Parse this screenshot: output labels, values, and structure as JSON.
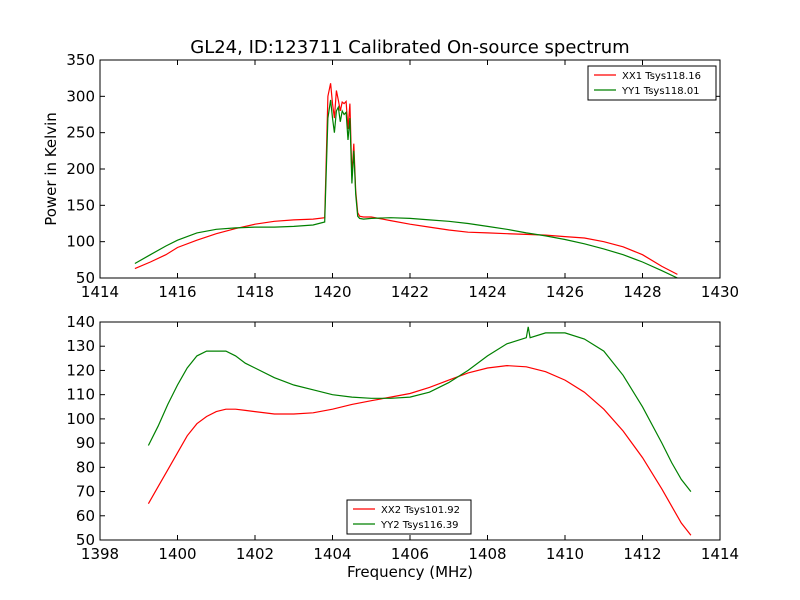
{
  "figure": {
    "title": "GL24, ID:123711 Calibrated On-source spectrum"
  },
  "chart_data": [
    {
      "type": "line",
      "title": "GL24, ID:123711 Calibrated On-source spectrum",
      "xlabel": "",
      "ylabel": "Power in Kelvin",
      "xlim": [
        1414,
        1430
      ],
      "ylim": [
        50,
        350
      ],
      "xticks": [
        1414,
        1416,
        1418,
        1420,
        1422,
        1424,
        1426,
        1428,
        1430
      ],
      "yticks": [
        50,
        100,
        150,
        200,
        250,
        300,
        350
      ],
      "grid": false,
      "legend_position": "top-right",
      "series": [
        {
          "name": "XX1 Tsys118.16",
          "color": "#ff0000",
          "x": [
            1414.9,
            1415.3,
            1415.7,
            1416.0,
            1416.5,
            1417.0,
            1417.5,
            1418.0,
            1418.5,
            1419.0,
            1419.5,
            1419.8,
            1419.88,
            1419.95,
            1420.0,
            1420.05,
            1420.1,
            1420.15,
            1420.2,
            1420.25,
            1420.3,
            1420.35,
            1420.4,
            1420.45,
            1420.5,
            1420.55,
            1420.6,
            1420.65,
            1420.7,
            1420.8,
            1421.0,
            1421.5,
            1422.0,
            1422.5,
            1423.0,
            1423.5,
            1424.0,
            1424.5,
            1425.0,
            1425.5,
            1426.0,
            1426.5,
            1427.0,
            1427.5,
            1428.0,
            1428.5,
            1428.9
          ],
          "y": [
            63,
            72,
            82,
            92,
            102,
            111,
            118,
            124,
            128,
            130,
            131,
            133,
            300,
            318,
            290,
            270,
            308,
            295,
            280,
            292,
            290,
            293,
            255,
            290,
            190,
            235,
            170,
            140,
            135,
            134,
            134,
            129,
            124,
            120,
            116,
            113,
            112,
            111,
            110,
            109,
            107,
            105,
            100,
            93,
            82,
            66,
            55
          ]
        },
        {
          "name": "YY1 Tsys118.01",
          "color": "#008000",
          "x": [
            1414.9,
            1415.3,
            1415.7,
            1416.0,
            1416.5,
            1417.0,
            1417.5,
            1418.0,
            1418.5,
            1419.0,
            1419.5,
            1419.8,
            1419.88,
            1419.95,
            1420.0,
            1420.05,
            1420.1,
            1420.15,
            1420.2,
            1420.25,
            1420.3,
            1420.35,
            1420.4,
            1420.45,
            1420.5,
            1420.55,
            1420.6,
            1420.65,
            1420.7,
            1420.8,
            1421.0,
            1421.5,
            1422.0,
            1422.5,
            1423.0,
            1423.5,
            1424.0,
            1424.5,
            1425.0,
            1425.5,
            1426.0,
            1426.5,
            1427.0,
            1427.5,
            1428.0,
            1428.5,
            1428.9
          ],
          "y": [
            70,
            82,
            94,
            102,
            112,
            117,
            119,
            120,
            120,
            121,
            123,
            127,
            270,
            295,
            270,
            250,
            280,
            285,
            265,
            280,
            275,
            278,
            240,
            270,
            180,
            225,
            165,
            135,
            132,
            131,
            132,
            133,
            132,
            130,
            128,
            125,
            121,
            117,
            112,
            108,
            103,
            97,
            90,
            82,
            72,
            60,
            50
          ]
        }
      ]
    },
    {
      "type": "line",
      "title": "",
      "xlabel": "Frequency (MHz)",
      "ylabel": "",
      "xlim": [
        1398,
        1414
      ],
      "ylim": [
        50,
        140
      ],
      "xticks": [
        1398,
        1400,
        1402,
        1404,
        1406,
        1408,
        1410,
        1412,
        1414
      ],
      "yticks": [
        50,
        60,
        70,
        80,
        90,
        100,
        110,
        120,
        130,
        140
      ],
      "grid": false,
      "legend_position": "bottom-center",
      "series": [
        {
          "name": "XX2 Tsys101.92",
          "color": "#ff0000",
          "x": [
            1399.25,
            1399.5,
            1399.75,
            1400.0,
            1400.25,
            1400.5,
            1400.75,
            1401.0,
            1401.25,
            1401.5,
            1401.75,
            1402.0,
            1402.5,
            1403.0,
            1403.5,
            1404.0,
            1404.5,
            1405.0,
            1405.5,
            1406.0,
            1406.5,
            1407.0,
            1407.5,
            1408.0,
            1408.5,
            1409.0,
            1409.5,
            1410.0,
            1410.5,
            1411.0,
            1411.5,
            1412.0,
            1412.5,
            1412.75,
            1413.0,
            1413.25
          ],
          "y": [
            65,
            72,
            79,
            86,
            93,
            98,
            101,
            103,
            104,
            104,
            103.5,
            103,
            102,
            102,
            102.5,
            104,
            106,
            107.5,
            109,
            110.5,
            113,
            116,
            119,
            121,
            122,
            121.5,
            119.5,
            116,
            111,
            104,
            95,
            84,
            71,
            64,
            57,
            52
          ]
        },
        {
          "name": "YY2 Tsys116.39",
          "color": "#008000",
          "x": [
            1399.25,
            1399.5,
            1399.75,
            1400.0,
            1400.25,
            1400.5,
            1400.75,
            1401.0,
            1401.25,
            1401.5,
            1401.75,
            1402.0,
            1402.5,
            1403.0,
            1403.5,
            1404.0,
            1404.5,
            1405.0,
            1405.5,
            1406.0,
            1406.5,
            1407.0,
            1407.5,
            1408.0,
            1408.5,
            1409.0,
            1409.05,
            1409.1,
            1409.5,
            1410.0,
            1410.5,
            1411.0,
            1411.5,
            1412.0,
            1412.5,
            1412.75,
            1413.0,
            1413.25
          ],
          "y": [
            89,
            97,
            106,
            114,
            121,
            126,
            128,
            128,
            128,
            126,
            123,
            121,
            117,
            114,
            112,
            110,
            109,
            108.5,
            108.5,
            109,
            111,
            115,
            120,
            126,
            131,
            133.5,
            138,
            133.5,
            135.5,
            135.5,
            133,
            128,
            118,
            105,
            90,
            82,
            75,
            70
          ]
        }
      ]
    }
  ]
}
